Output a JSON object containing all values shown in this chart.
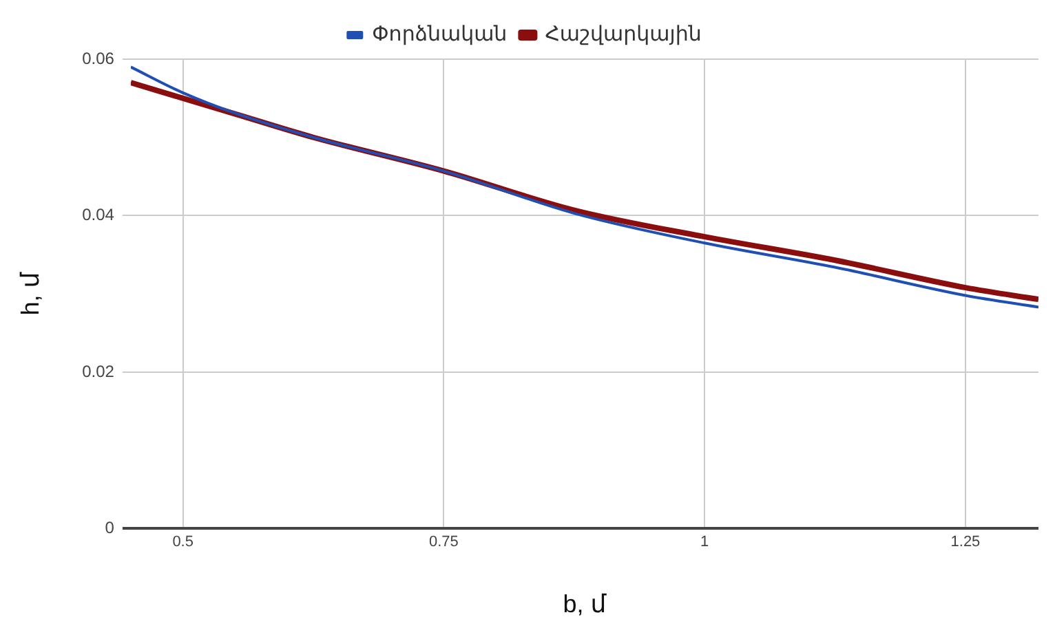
{
  "chart_data": {
    "type": "line",
    "xlabel": "b, մ",
    "ylabel": "h, մ",
    "legend": "top",
    "grid": true,
    "marker": "none",
    "line_style": "solid",
    "x": [
      0.45,
      0.5,
      0.55,
      0.625,
      0.75,
      0.875,
      1,
      1.125,
      1.25,
      1.32
    ],
    "series": [
      {
        "name": "Փորձնական",
        "color": "#1f4fb4",
        "values": [
          0.059,
          0.0557,
          0.0531,
          0.05,
          0.0457,
          0.0403,
          0.0365,
          0.0334,
          0.0298,
          0.0283
        ]
      },
      {
        "name": "Հաշվարկային",
        "color": "#8b0e0e",
        "values": [
          0.057,
          0.055,
          0.053,
          0.05,
          0.0457,
          0.0407,
          0.0373,
          0.0343,
          0.0308,
          0.0293
        ]
      }
    ],
    "xlim": [
      0.45,
      1.32
    ],
    "xticks": [
      0.5,
      0.75,
      1,
      1.25
    ],
    "ylim": [
      0,
      0.06
    ],
    "yticks": [
      0,
      0.02,
      0.04,
      0.06
    ]
  }
}
